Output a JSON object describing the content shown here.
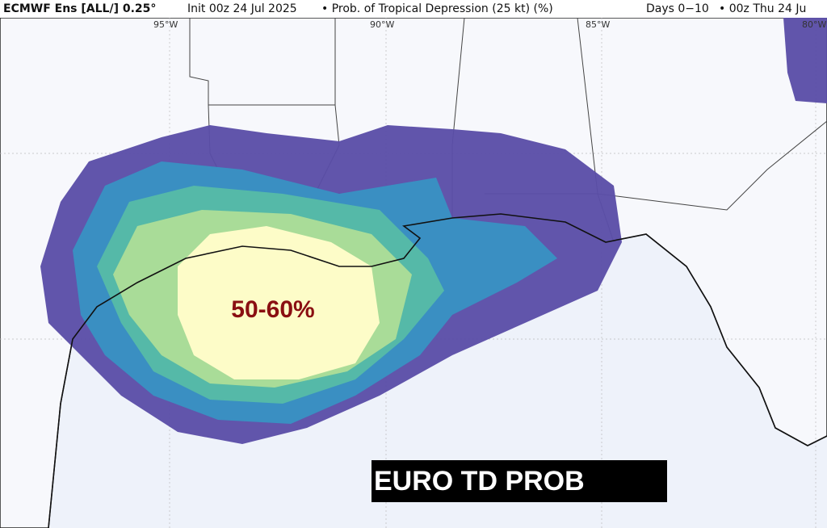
{
  "header": {
    "model": "ECMWF Ens [ALL/] 0.25°",
    "init": "Init 00z 24 Jul 2025",
    "product": "• Prob. of Tropical Depression (25 kt) (%)",
    "period": "Days 0−10",
    "valid": "• 00z Thu 24 Ju"
  },
  "longitudes": [
    "95°W",
    "90°W",
    "85°W",
    "80°W"
  ],
  "annotations": {
    "peak": "50-60%",
    "label": "EURO TD PROB"
  }
}
